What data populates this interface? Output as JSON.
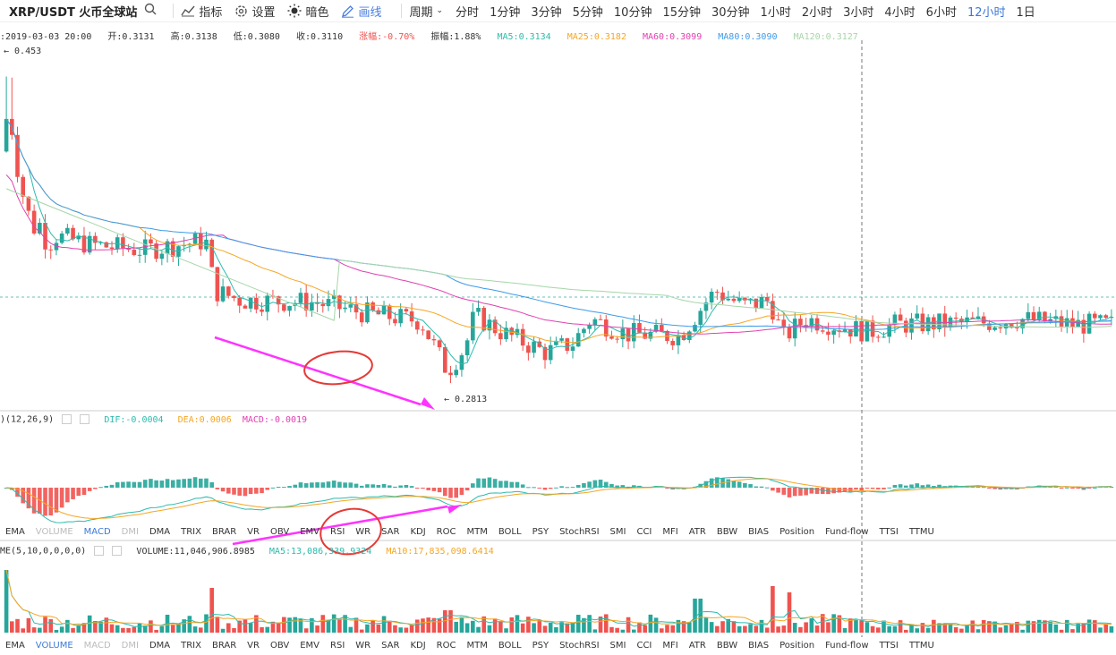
{
  "toolbar": {
    "symbol": "XRP/USDT 火币全球站",
    "search_icon": "search-icon",
    "buttons": [
      {
        "icon": "indicator-icon",
        "label": "指标"
      },
      {
        "icon": "gear-icon",
        "label": "设置"
      },
      {
        "icon": "sun-icon",
        "label": "暗色"
      },
      {
        "icon": "pencil-icon",
        "label": "画线"
      }
    ],
    "period_label": "周期",
    "timeframes": [
      "分时",
      "1分钟",
      "3分钟",
      "5分钟",
      "10分钟",
      "15分钟",
      "30分钟",
      "1小时",
      "2小时",
      "3小时",
      "4小时",
      "6小时",
      "12小时",
      "1日"
    ],
    "active_timeframe": "12小时"
  },
  "info": {
    "date": ":2019-03-03 20:00",
    "open": "开:0.3131",
    "high": "高:0.3138",
    "low": "低:0.3080",
    "close": "收:0.3110",
    "change": "涨幅:-0.70%",
    "amplitude": "振幅:1.88%",
    "ma5": "MA5:0.3134",
    "ma25": "MA25:0.3182",
    "ma60": "MA60:0.3099",
    "ma80": "MA80:0.3090",
    "ma120": "MA120:0.3127"
  },
  "price_marks": {
    "high_label": "← 0.453",
    "low_label": "← 0.2813"
  },
  "macd": {
    "title": ")(12,26,9)",
    "dif": "DIF:-0.0004",
    "dea": "DEA:0.0006",
    "macd": "MACD:-0.0019"
  },
  "volume": {
    "title": "ME(5,10,0,0,0,0)",
    "value": "VOLUME:11,046,906.8985",
    "ma5": "MA5:13,086,339.9324",
    "ma10": "MA10:17,835,098.6414"
  },
  "indicator_tabs": [
    "EMA",
    "VOLUME",
    "MACD",
    "DMI",
    "DMA",
    "TRIX",
    "BRAR",
    "VR",
    "OBV",
    "EMV",
    "RSI",
    "WR",
    "SAR",
    "KDJ",
    "ROC",
    "MTM",
    "BOLL",
    "PSY",
    "StochRSI",
    "SMI",
    "CCI",
    "MFI",
    "ATR",
    "BBW",
    "BIAS",
    "Position",
    "Fund-flow",
    "TTSI",
    "TTMU"
  ],
  "indicator_tabs_1_selected": "MACD",
  "indicator_tabs_2_selected": "VOLUME",
  "colors": {
    "up": "#26a69a",
    "down": "#ef5350",
    "ma5": "#2bbbad",
    "ma25": "#f5a623",
    "ma60": "#e040b0",
    "ma80": "#3d9be9",
    "ma120": "#a5d6a7",
    "annotation_arrow": "#ff33ff",
    "annotation_circle": "#e53935",
    "active": "#3c78d8"
  },
  "chart_data": {
    "type": "candlestick",
    "symbol": "XRP/USDT",
    "interval": "12小时",
    "ylim": [
      0.27,
      0.46
    ],
    "price_close_series": [
      0.4,
      0.39,
      0.37,
      0.35,
      0.36,
      0.36,
      0.34,
      0.35,
      0.35,
      0.34,
      0.35,
      0.35,
      0.35,
      0.36,
      0.35,
      0.35,
      0.34,
      0.36,
      0.35,
      0.34,
      0.33,
      0.33,
      0.32,
      0.31,
      0.31,
      0.31,
      0.32,
      0.32,
      0.31,
      0.31,
      0.31,
      0.31,
      0.31,
      0.31,
      0.31,
      0.31,
      0.31,
      0.3,
      0.3,
      0.29,
      0.29,
      0.29,
      0.3,
      0.29,
      0.29,
      0.28,
      0.29,
      0.31,
      0.3,
      0.3,
      0.3,
      0.3,
      0.29,
      0.29,
      0.29,
      0.29,
      0.3,
      0.3,
      0.3,
      0.3,
      0.3,
      0.3,
      0.3,
      0.3,
      0.3,
      0.3,
      0.31,
      0.32,
      0.31,
      0.31,
      0.31,
      0.32,
      0.31,
      0.31,
      0.3,
      0.31,
      0.31,
      0.31,
      0.31,
      0.31,
      0.31,
      0.31,
      0.31,
      0.31,
      0.31,
      0.31,
      0.31,
      0.31,
      0.31,
      0.31,
      0.31,
      0.31,
      0.31,
      0.31,
      0.31,
      0.31,
      0.31,
      0.31,
      0.31,
      0.31
    ],
    "high": 0.453,
    "low": 0.2813,
    "indicators": [
      "MA5",
      "MA25",
      "MA60",
      "MA80",
      "MA120"
    ],
    "macd_params": "12,26,9",
    "volume_params": "5,10"
  }
}
